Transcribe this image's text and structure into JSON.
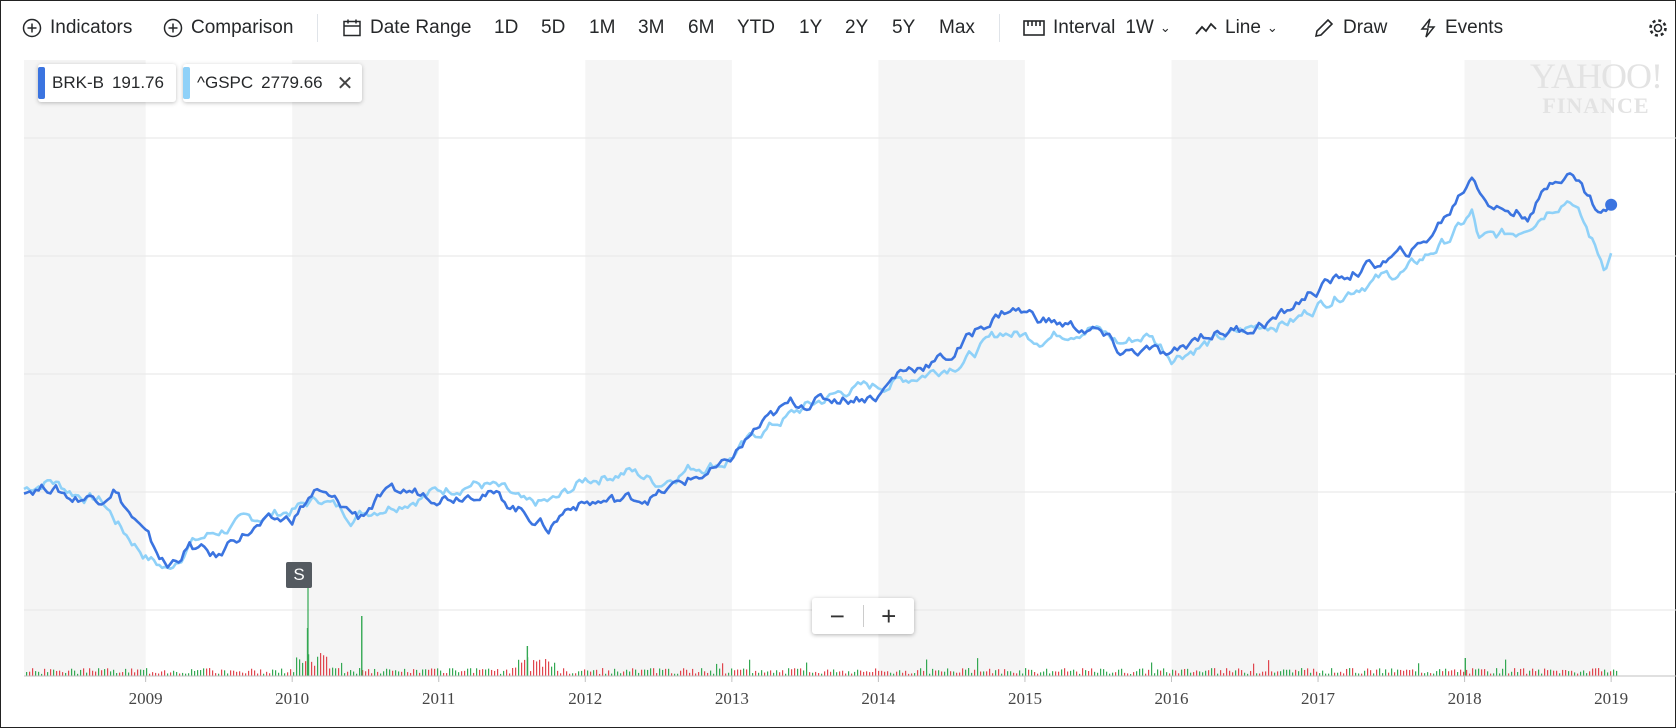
{
  "toolbar": {
    "indicators": "Indicators",
    "comparison": "Comparison",
    "date_range": "Date Range",
    "ranges": [
      "1D",
      "5D",
      "1M",
      "3M",
      "6M",
      "YTD",
      "1Y",
      "2Y",
      "5Y",
      "Max"
    ],
    "interval_label": "Interval",
    "interval_value": "1W",
    "chart_type": "Line",
    "draw": "Draw",
    "events": "Events"
  },
  "legend": [
    {
      "symbol": "BRK-B",
      "value": "191.76",
      "color": "#3b74e0"
    },
    {
      "symbol": "^GSPC",
      "value": "2779.66",
      "color": "#8fd1f8",
      "closable": true
    }
  ],
  "watermark": {
    "line1": "YAHOO!",
    "line2": "FINANCE"
  },
  "split_marker": "S",
  "zoom": {
    "minus": "−",
    "plus": "+"
  },
  "chart_data": {
    "type": "line",
    "x_ticks": [
      "2009",
      "2010",
      "2011",
      "2012",
      "2013",
      "2014",
      "2015",
      "2016",
      "2017",
      "2018",
      "2019"
    ],
    "x_range": [
      2008.17,
      2019.04
    ],
    "grid": true,
    "legend_placement": "top-left",
    "series": [
      {
        "name": "BRK-B",
        "color": "#3b74e0",
        "points": [
          [
            2008.17,
            5.0
          ],
          [
            2008.35,
            5.5
          ],
          [
            2008.5,
            3.5
          ],
          [
            2008.7,
            3.8
          ],
          [
            2008.78,
            5.5
          ],
          [
            2008.85,
            2.5
          ],
          [
            2009.0,
            -3.0
          ],
          [
            2009.15,
            -8.0
          ],
          [
            2009.3,
            -4.5
          ],
          [
            2009.5,
            -6.5
          ],
          [
            2009.6,
            -3.0
          ],
          [
            2009.8,
            -1.0
          ],
          [
            2010.0,
            0.0
          ],
          [
            2010.15,
            4.5
          ],
          [
            2010.35,
            2.0
          ],
          [
            2010.45,
            0.5
          ],
          [
            2010.6,
            3.5
          ],
          [
            2010.8,
            4.5
          ],
          [
            2011.1,
            4.0
          ],
          [
            2011.3,
            5.0
          ],
          [
            2011.45,
            3.0
          ],
          [
            2011.6,
            1.0
          ],
          [
            2011.75,
            -1.5
          ],
          [
            2011.9,
            2.5
          ],
          [
            2012.2,
            3.0
          ],
          [
            2012.5,
            4.0
          ],
          [
            2012.7,
            6.5
          ],
          [
            2012.95,
            8.5
          ],
          [
            2013.15,
            14.5
          ],
          [
            2013.4,
            19.0
          ],
          [
            2013.7,
            20.0
          ],
          [
            2014.0,
            20.5
          ],
          [
            2014.15,
            24.5
          ],
          [
            2014.5,
            27.0
          ],
          [
            2014.7,
            32.0
          ],
          [
            2014.9,
            35.0
          ],
          [
            2015.2,
            32.5
          ],
          [
            2015.5,
            31.0
          ],
          [
            2015.65,
            27.5
          ],
          [
            2015.85,
            28.0
          ],
          [
            2016.0,
            26.5
          ],
          [
            2016.2,
            30.5
          ],
          [
            2016.5,
            31.5
          ],
          [
            2016.75,
            33.5
          ],
          [
            2016.95,
            37.5
          ],
          [
            2017.2,
            40.5
          ],
          [
            2017.5,
            43.0
          ],
          [
            2017.7,
            45.0
          ],
          [
            2017.9,
            51.0
          ],
          [
            2018.05,
            57.0
          ],
          [
            2018.2,
            51.5
          ],
          [
            2018.45,
            50.5
          ],
          [
            2018.6,
            56.0
          ],
          [
            2018.7,
            58.0
          ],
          [
            2018.8,
            55.0
          ],
          [
            2018.93,
            50.5
          ],
          [
            2019.0,
            52.0
          ]
        ]
      },
      {
        "name": "^GSPC",
        "color": "#8fd1f8",
        "points": [
          [
            2008.17,
            5.0
          ],
          [
            2008.35,
            6.5
          ],
          [
            2008.5,
            4.5
          ],
          [
            2008.7,
            3.0
          ],
          [
            2008.85,
            -2.0
          ],
          [
            2009.0,
            -6.0
          ],
          [
            2009.15,
            -8.5
          ],
          [
            2009.3,
            -4.0
          ],
          [
            2009.5,
            -2.0
          ],
          [
            2009.8,
            0.5
          ],
          [
            2010.0,
            1.5
          ],
          [
            2010.2,
            3.5
          ],
          [
            2010.4,
            0.5
          ],
          [
            2010.6,
            2.0
          ],
          [
            2010.9,
            4.0
          ],
          [
            2011.2,
            6.0
          ],
          [
            2011.35,
            5.5
          ],
          [
            2011.45,
            4.5
          ],
          [
            2011.6,
            2.0
          ],
          [
            2011.8,
            3.0
          ],
          [
            2012.0,
            6.5
          ],
          [
            2012.3,
            8.0
          ],
          [
            2012.5,
            6.0
          ],
          [
            2012.7,
            8.5
          ],
          [
            2012.95,
            9.5
          ],
          [
            2013.2,
            14.5
          ],
          [
            2013.5,
            18.5
          ],
          [
            2013.8,
            21.5
          ],
          [
            2014.0,
            22.0
          ],
          [
            2014.3,
            24.0
          ],
          [
            2014.6,
            26.5
          ],
          [
            2014.85,
            31.0
          ],
          [
            2015.1,
            30.0
          ],
          [
            2015.45,
            32.0
          ],
          [
            2015.65,
            29.0
          ],
          [
            2015.85,
            30.5
          ],
          [
            2016.0,
            27.0
          ],
          [
            2016.3,
            29.5
          ],
          [
            2016.6,
            32.0
          ],
          [
            2016.85,
            33.0
          ],
          [
            2017.0,
            35.5
          ],
          [
            2017.3,
            39.0
          ],
          [
            2017.6,
            41.0
          ],
          [
            2017.9,
            46.5
          ],
          [
            2018.05,
            50.5
          ],
          [
            2018.1,
            46.0
          ],
          [
            2018.35,
            47.5
          ],
          [
            2018.6,
            52.0
          ],
          [
            2018.72,
            53.5
          ],
          [
            2018.85,
            47.0
          ],
          [
            2018.95,
            42.0
          ],
          [
            2019.0,
            44.0
          ]
        ]
      }
    ]
  }
}
